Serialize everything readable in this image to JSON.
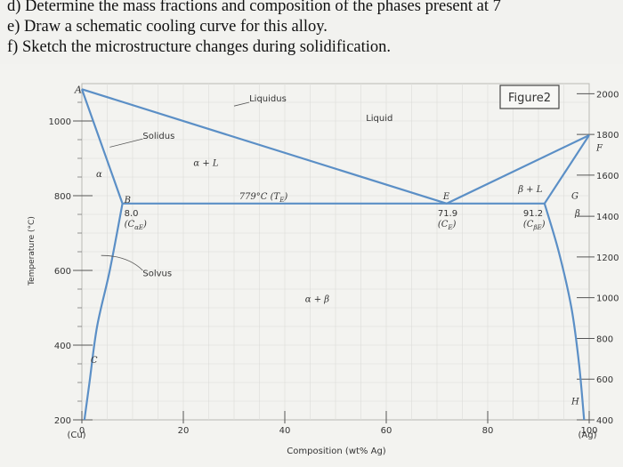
{
  "questions": [
    "d) Determine the mass fractions and composition of the phases present at 7",
    "e) Draw a schematic cooling curve for this alloy.",
    "f) Sketch the microstructure changes during solidification."
  ],
  "figure": {
    "badge": "Figure2",
    "y_axis_label": "Temperature (°C)",
    "x_axis_label": "Composition (wt% Ag)",
    "left_ticks": [
      {
        "value": 200,
        "label": "200"
      },
      {
        "value": 400,
        "label": "400"
      },
      {
        "value": 600,
        "label": "600"
      },
      {
        "value": 800,
        "label": "800"
      },
      {
        "value": 1000,
        "label": "1000"
      }
    ],
    "right_ticks": [
      {
        "value": 200,
        "label": "400"
      },
      {
        "value": 309,
        "label": "600"
      },
      {
        "value": 418,
        "label": "800"
      },
      {
        "value": 527,
        "label": "1000"
      },
      {
        "value": 636,
        "label": "1200"
      },
      {
        "value": 745,
        "label": "1400"
      },
      {
        "value": 855,
        "label": "1600"
      },
      {
        "value": 964,
        "label": "1800"
      },
      {
        "value": 1073,
        "label": "2000"
      }
    ],
    "bottom_ticks": [
      {
        "value": 0,
        "label": "0"
      },
      {
        "value": 20,
        "label": "20"
      },
      {
        "value": 40,
        "label": "40"
      },
      {
        "value": 60,
        "label": "60"
      },
      {
        "value": 80,
        "label": "80"
      },
      {
        "value": 100,
        "label": "100"
      }
    ],
    "left_end_label": "(Cu)",
    "right_end_label": "(Ag)",
    "point_labels": {
      "A": "A",
      "B": "B",
      "C": "C",
      "E": "E",
      "F": "F",
      "G": "G",
      "H": "H"
    },
    "phase_labels": {
      "alpha": "α",
      "beta": "β",
      "alpha_plus_L": "α + L",
      "beta_plus_L": "β + L",
      "alpha_plus_beta": "α + β",
      "liquid": "Liquid"
    },
    "line_labels": {
      "liquidus": "Liquidus",
      "solidus": "Solidus",
      "solvus": "Solvus",
      "eutectic_temp": "779°C (T",
      "eutectic_temp_sub": "E",
      "eutectic_temp_end": ")"
    },
    "composition_labels": {
      "ca_value": "8.0",
      "ca_symbol": "(C",
      "ca_sub": "αE",
      "ce_value": "71.9",
      "ce_symbol": "(C",
      "ce_sub": "E",
      "cb_value": "91.2",
      "cb_symbol": "(C",
      "cb_sub": "βE",
      "close_paren": ")"
    }
  },
  "chart_data": {
    "type": "line",
    "title": "",
    "xlabel": "Composition (wt% Ag)",
    "ylabel": "Temperature (°C)",
    "xlim": [
      0,
      100
    ],
    "ylim": [
      200,
      1100
    ],
    "series": [
      {
        "name": "Liquidus",
        "x": [
          0,
          71.9,
          100
        ],
        "y": [
          1085,
          779,
          962
        ]
      },
      {
        "name": "Solidus",
        "x": [
          0,
          8.0
        ],
        "y": [
          1085,
          779
        ]
      },
      {
        "name": "Solidus",
        "x": [
          91.2,
          100
        ],
        "y": [
          779,
          962
        ]
      },
      {
        "name": "Solvus",
        "x": [
          8.0,
          5.5,
          3.0,
          1.5,
          0.5
        ],
        "y": [
          779,
          600,
          450,
          300,
          200
        ]
      },
      {
        "name": "Solvus",
        "x": [
          91.2,
          94,
          96.5,
          98,
          99
        ],
        "y": [
          779,
          650,
          500,
          350,
          200
        ]
      },
      {
        "name": "779°C (TE)",
        "x": [
          8.0,
          91.2
        ],
        "y": [
          779,
          779
        ]
      }
    ],
    "annotations": [
      "A",
      "B",
      "C",
      "E",
      "F",
      "G",
      "H",
      "α",
      "β",
      "α + L",
      "β + L",
      "α + β",
      "Liquid",
      "8.0",
      "71.9",
      "91.2"
    ]
  }
}
